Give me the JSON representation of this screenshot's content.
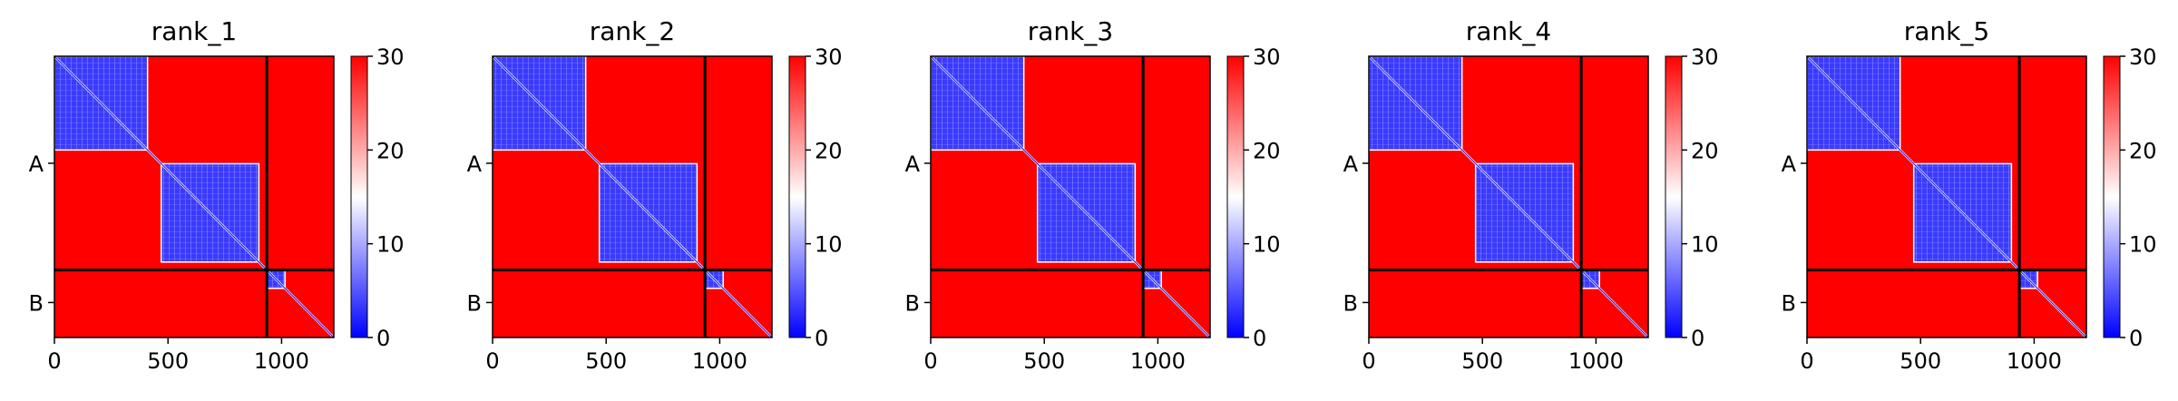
{
  "chart_data": [
    {
      "type": "heatmap",
      "title": "rank_1",
      "xlabel": "",
      "ylabel": "",
      "xlim": [
        0,
        1230
      ],
      "x_ticks": [
        0,
        500,
        1000
      ],
      "y_ticks": [
        {
          "label": "A",
          "value": 468
        },
        {
          "label": "B",
          "value": 1077
        }
      ],
      "chain_break": 935,
      "segments": [
        {
          "start": 0,
          "end": 410,
          "low": true
        },
        {
          "start": 470,
          "end": 900,
          "low": true
        },
        {
          "start": 935,
          "end": 1015,
          "low": true
        }
      ],
      "colorbar": {
        "min": 0,
        "max": 30,
        "ticks": [
          0,
          10,
          20,
          30
        ],
        "colors": [
          "#0000ff",
          "#ffffff",
          "#ff0000"
        ]
      }
    },
    {
      "type": "heatmap",
      "title": "rank_2",
      "xlabel": "",
      "ylabel": "",
      "xlim": [
        0,
        1230
      ],
      "x_ticks": [
        0,
        500,
        1000
      ],
      "y_ticks": [
        {
          "label": "A",
          "value": 468
        },
        {
          "label": "B",
          "value": 1077
        }
      ],
      "chain_break": 935,
      "segments": [
        {
          "start": 0,
          "end": 410,
          "low": true
        },
        {
          "start": 470,
          "end": 900,
          "low": true
        },
        {
          "start": 935,
          "end": 1015,
          "low": true
        }
      ],
      "colorbar": {
        "min": 0,
        "max": 30,
        "ticks": [
          0,
          10,
          20,
          30
        ],
        "colors": [
          "#0000ff",
          "#ffffff",
          "#ff0000"
        ]
      }
    },
    {
      "type": "heatmap",
      "title": "rank_3",
      "xlabel": "",
      "ylabel": "",
      "xlim": [
        0,
        1230
      ],
      "x_ticks": [
        0,
        500,
        1000
      ],
      "y_ticks": [
        {
          "label": "A",
          "value": 468
        },
        {
          "label": "B",
          "value": 1077
        }
      ],
      "chain_break": 935,
      "segments": [
        {
          "start": 0,
          "end": 410,
          "low": true
        },
        {
          "start": 470,
          "end": 900,
          "low": true
        },
        {
          "start": 935,
          "end": 1015,
          "low": true
        }
      ],
      "colorbar": {
        "min": 0,
        "max": 30,
        "ticks": [
          0,
          10,
          20,
          30
        ],
        "colors": [
          "#0000ff",
          "#ffffff",
          "#ff0000"
        ]
      }
    },
    {
      "type": "heatmap",
      "title": "rank_4",
      "xlabel": "",
      "ylabel": "",
      "xlim": [
        0,
        1230
      ],
      "x_ticks": [
        0,
        500,
        1000
      ],
      "y_ticks": [
        {
          "label": "A",
          "value": 468
        },
        {
          "label": "B",
          "value": 1077
        }
      ],
      "chain_break": 935,
      "segments": [
        {
          "start": 0,
          "end": 410,
          "low": true
        },
        {
          "start": 470,
          "end": 900,
          "low": true
        },
        {
          "start": 935,
          "end": 1015,
          "low": true
        }
      ],
      "colorbar": {
        "min": 0,
        "max": 30,
        "ticks": [
          0,
          10,
          20,
          30
        ],
        "colors": [
          "#0000ff",
          "#ffffff",
          "#ff0000"
        ]
      }
    },
    {
      "type": "heatmap",
      "title": "rank_5",
      "xlabel": "",
      "ylabel": "",
      "xlim": [
        0,
        1230
      ],
      "x_ticks": [
        0,
        500,
        1000
      ],
      "y_ticks": [
        {
          "label": "A",
          "value": 468
        },
        {
          "label": "B",
          "value": 1077
        }
      ],
      "chain_break": 935,
      "segments": [
        {
          "start": 0,
          "end": 410,
          "low": true
        },
        {
          "start": 470,
          "end": 900,
          "low": true
        },
        {
          "start": 935,
          "end": 1015,
          "low": true
        }
      ],
      "colorbar": {
        "min": 0,
        "max": 30,
        "ticks": [
          0,
          10,
          20,
          30
        ],
        "colors": [
          "#0000ff",
          "#ffffff",
          "#ff0000"
        ]
      }
    }
  ]
}
